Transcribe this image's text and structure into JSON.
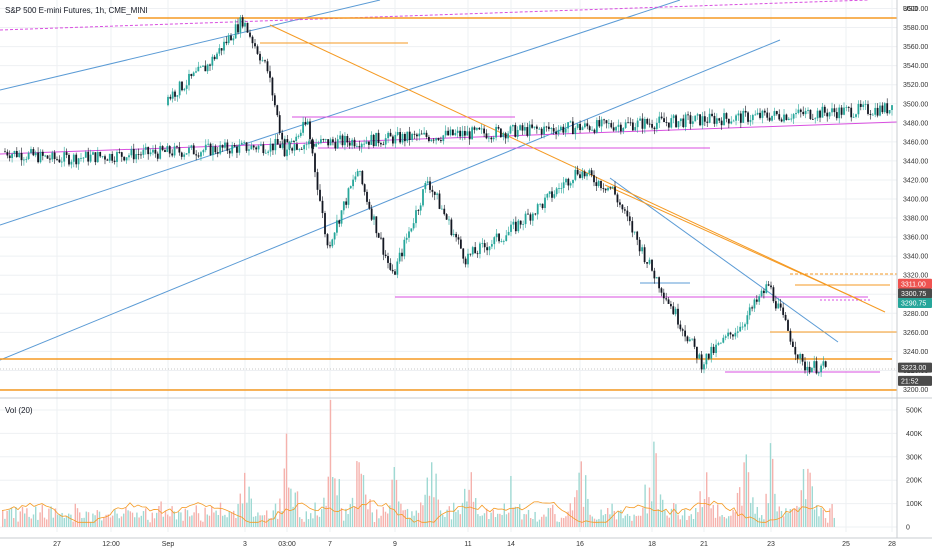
{
  "header": {
    "title": "S&P 500 E-mini Futures, 1h, CME_MINI",
    "currency": "USD",
    "volume_label": "Vol (20)"
  },
  "colors": {
    "up": "#26a69a",
    "down": "#131722",
    "vol_up": "#9fd9d3",
    "vol_down": "#f5b2ad",
    "orange": "#f59a23",
    "blue": "#5b9bd5",
    "magenta": "#d94fe0",
    "grid": "#eef0f3",
    "price_red": "#ef5350",
    "price_teal": "#26a69a",
    "price_dark": "#4a4a4a"
  },
  "chart_data": [
    {
      "type": "candlestick",
      "title": "S&P 500 E-mini Futures, 1h, CME_MINI",
      "ylim": [
        3188,
        3600
      ],
      "y_ticks": [
        3200,
        3220,
        3240,
        3260,
        3280,
        3300,
        3320,
        3340,
        3360,
        3380,
        3400,
        3420,
        3440,
        3460,
        3480,
        3500,
        3520,
        3540,
        3560,
        3580,
        3600
      ],
      "x_ticks": [
        "27",
        "12:00",
        "Sep",
        "3",
        "03:00",
        "7",
        "9",
        "11",
        "14",
        "16",
        "18",
        "21",
        "23",
        "25",
        "28"
      ],
      "price_path": [
        {
          "x": "26",
          "y": 3450
        },
        {
          "x": "27",
          "y": 3442
        },
        {
          "x": "28",
          "y": 3495
        },
        {
          "x": "Sep",
          "y": 3505
        },
        {
          "x": "2",
          "y": 3540
        },
        {
          "x": "3",
          "y": 3588
        },
        {
          "x": "3 12:00",
          "y": 3535
        },
        {
          "x": "03:00",
          "y": 3450
        },
        {
          "x": "4 12:00",
          "y": 3480
        },
        {
          "x": "7",
          "y": 3350
        },
        {
          "x": "8",
          "y": 3430
        },
        {
          "x": "9",
          "y": 3318
        },
        {
          "x": "10",
          "y": 3420
        },
        {
          "x": "11",
          "y": 3338
        },
        {
          "x": "14",
          "y": 3365
        },
        {
          "x": "15",
          "y": 3395
        },
        {
          "x": "16",
          "y": 3430
        },
        {
          "x": "17",
          "y": 3410
        },
        {
          "x": "18",
          "y": 3330
        },
        {
          "x": "21",
          "y": 3228
        },
        {
          "x": "22",
          "y": 3270
        },
        {
          "x": "23",
          "y": 3310
        },
        {
          "x": "24",
          "y": 3225
        },
        {
          "x": "24 21:52",
          "y": 3223
        }
      ],
      "price_labels": [
        {
          "text": "3311.00",
          "value": 3311,
          "color": "price_red"
        },
        {
          "text": "3300.75",
          "value": 3300.75,
          "color": "price_dark"
        },
        {
          "text": "3290.75",
          "value": 3290.75,
          "color": "price_teal"
        },
        {
          "text": "3223.00",
          "value": 3223,
          "color": "price_dark"
        },
        {
          "text": "21:52",
          "value": 3209,
          "color": "price_dark"
        }
      ]
    },
    {
      "type": "bar",
      "title": "Vol (20)",
      "ylim": [
        0,
        560000
      ],
      "y_ticks": [
        {
          "value": 0,
          "label": "0"
        },
        {
          "value": 100000,
          "label": "100K"
        },
        {
          "value": 200000,
          "label": "200K"
        },
        {
          "value": 300000,
          "label": "300K"
        },
        {
          "value": 400000,
          "label": "400K"
        },
        {
          "value": 500000,
          "label": "500K"
        }
      ],
      "peak_volumes": [
        {
          "x": "28",
          "value": 180000
        },
        {
          "x": "3",
          "value": 300000
        },
        {
          "x": "03:00",
          "value": 450000
        },
        {
          "x": "7",
          "value": 530000
        },
        {
          "x": "8",
          "value": 450000
        },
        {
          "x": "9",
          "value": 300000
        },
        {
          "x": "10",
          "value": 420000
        },
        {
          "x": "11",
          "value": 350000
        },
        {
          "x": "14",
          "value": 280000
        },
        {
          "x": "16",
          "value": 400000
        },
        {
          "x": "18",
          "value": 450000
        },
        {
          "x": "21",
          "value": 350000
        },
        {
          "x": "22",
          "value": 370000
        },
        {
          "x": "23",
          "value": 340000
        },
        {
          "x": "24",
          "value": 440000
        }
      ],
      "ma_level": 100000
    }
  ]
}
